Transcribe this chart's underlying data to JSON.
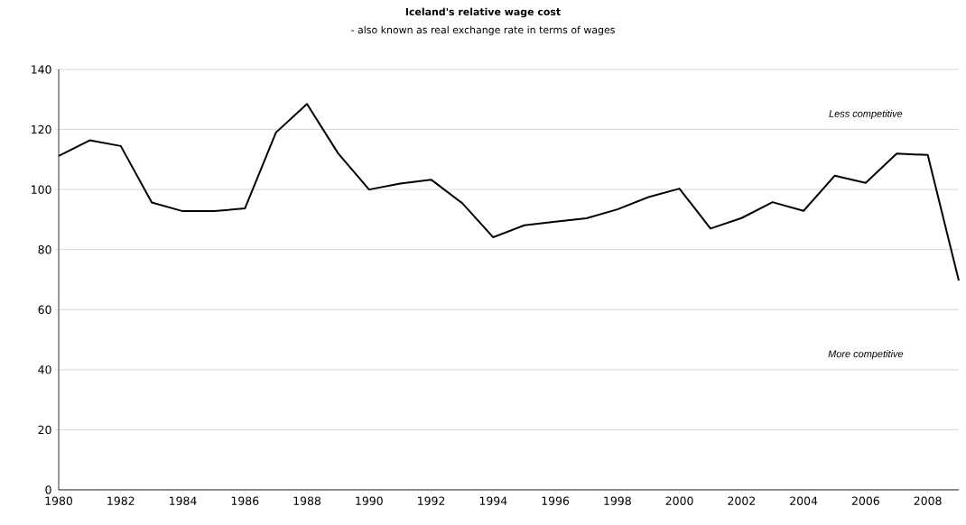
{
  "chart_data": {
    "type": "line",
    "title": "Iceland's relative wage cost",
    "subtitle": "- also known as real exchange rate in terms of wages",
    "x": [
      1980,
      1981,
      1982,
      1983,
      1984,
      1985,
      1986,
      1987,
      1988,
      1989,
      1990,
      1991,
      1992,
      1993,
      1994,
      1995,
      1996,
      1997,
      1998,
      1999,
      2000,
      2001,
      2002,
      2003,
      2004,
      2005,
      2006,
      2007,
      2008,
      2009
    ],
    "series": [
      {
        "color": "#000000",
        "values": [
          111.2,
          116.4,
          114.5,
          95.7,
          92.8,
          92.8,
          93.7,
          119.0,
          128.5,
          112.1,
          100.0,
          102.0,
          103.3,
          95.5,
          84.1,
          88.1,
          89.3,
          90.4,
          93.4,
          97.5,
          100.3,
          87.0,
          90.5,
          95.8,
          92.9,
          104.6,
          102.2,
          112.0,
          111.5,
          69.7
        ]
      }
    ],
    "xlim": [
      1980,
      2009
    ],
    "xticks": [
      1980,
      1982,
      1984,
      1986,
      1988,
      1990,
      1992,
      1994,
      1996,
      1998,
      2000,
      2002,
      2004,
      2006,
      2008
    ],
    "ylim": [
      0,
      140
    ],
    "yticks": [
      0,
      20,
      40,
      60,
      80,
      100,
      120,
      140
    ],
    "grid": "y",
    "marker": "none",
    "line_style": "solid",
    "annotations": [
      "Less competitive",
      "More competitive"
    ]
  }
}
